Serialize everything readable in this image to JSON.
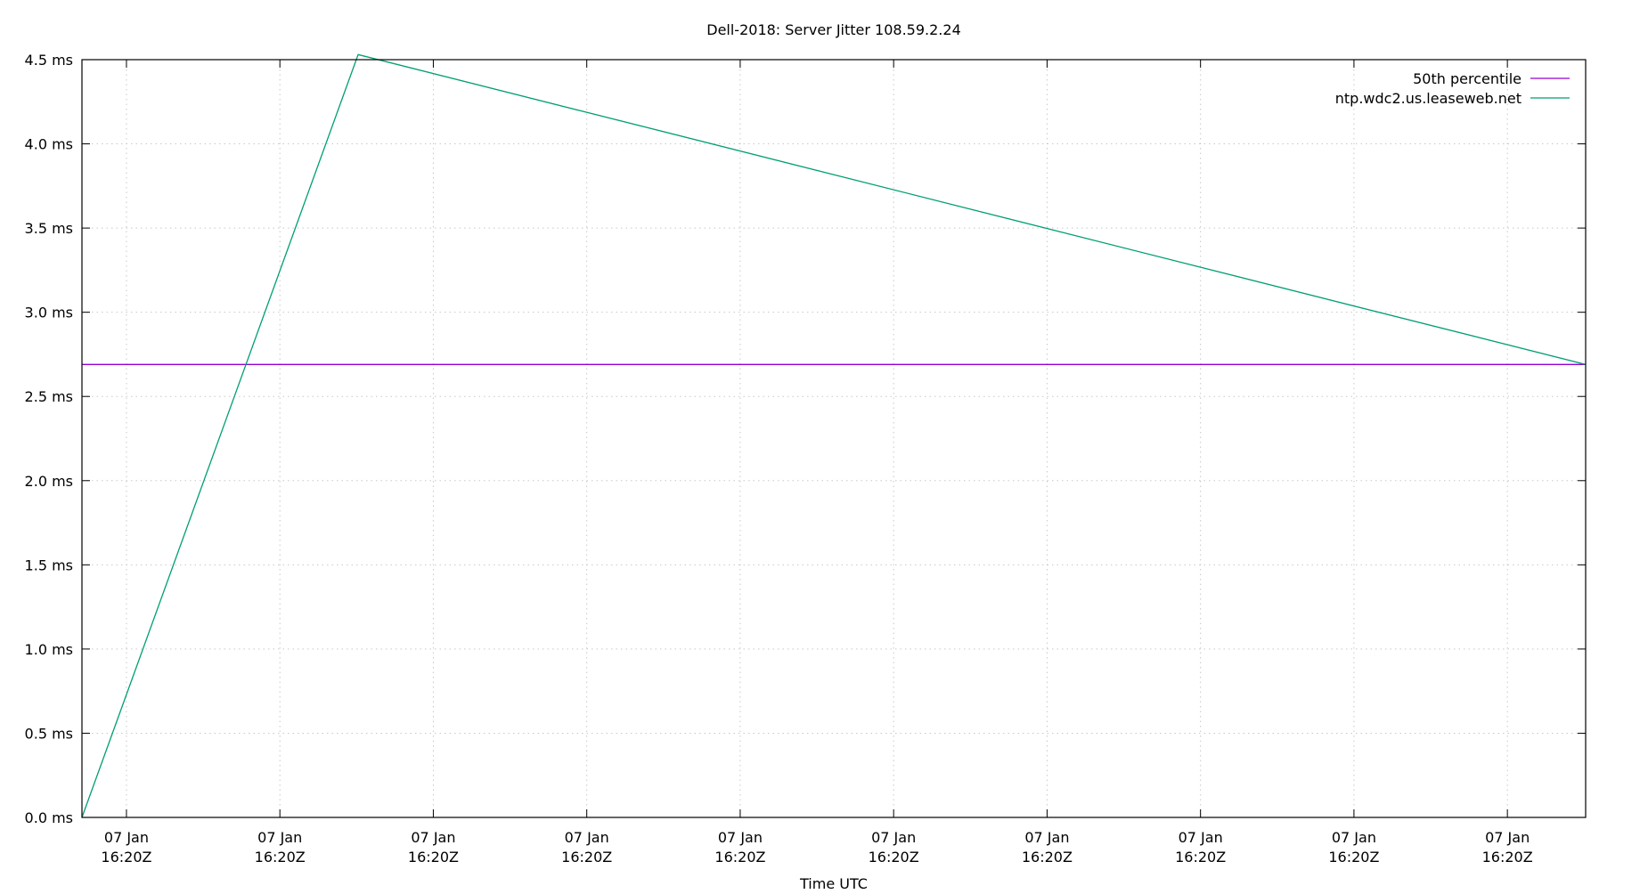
{
  "chart_data": {
    "type": "line",
    "title": "Dell-2018: Server Jitter 108.59.2.24",
    "xlabel": "Time UTC",
    "ylabel": "",
    "x_units": "tick index (all ticks labelled 07 Jan 16:20Z)",
    "xlim": [
      -0.29,
      9.51
    ],
    "ylim": [
      0,
      4.5
    ],
    "y_ticks": [
      0,
      0.5,
      1.0,
      1.5,
      2.0,
      2.5,
      3.0,
      3.5,
      4.0,
      4.5
    ],
    "y_tick_labels": [
      "0.0 ms",
      "0.5 ms",
      "1.0 ms",
      "1.5 ms",
      "2.0 ms",
      "2.5 ms",
      "3.0 ms",
      "3.5 ms",
      "4.0 ms",
      "4.5 ms"
    ],
    "x_tick_labels": [
      [
        "07 Jan",
        "16:20Z"
      ],
      [
        "07 Jan",
        "16:20Z"
      ],
      [
        "07 Jan",
        "16:20Z"
      ],
      [
        "07 Jan",
        "16:20Z"
      ],
      [
        "07 Jan",
        "16:20Z"
      ],
      [
        "07 Jan",
        "16:20Z"
      ],
      [
        "07 Jan",
        "16:20Z"
      ],
      [
        "07 Jan",
        "16:20Z"
      ],
      [
        "07 Jan",
        "16:20Z"
      ],
      [
        "07 Jan",
        "16:20Z"
      ]
    ],
    "grid": true,
    "legend_position": "top-right",
    "series": [
      {
        "name": "50th percentile",
        "color": "#9400d3",
        "x": [
          -0.29,
          9.51
        ],
        "y": [
          2.69,
          2.69
        ]
      },
      {
        "name": "ntp.wdc2.us.leaseweb.net",
        "color": "#009e73",
        "x": [
          -0.29,
          1.51,
          9.51
        ],
        "y": [
          0.0,
          4.53,
          2.69
        ]
      }
    ]
  }
}
